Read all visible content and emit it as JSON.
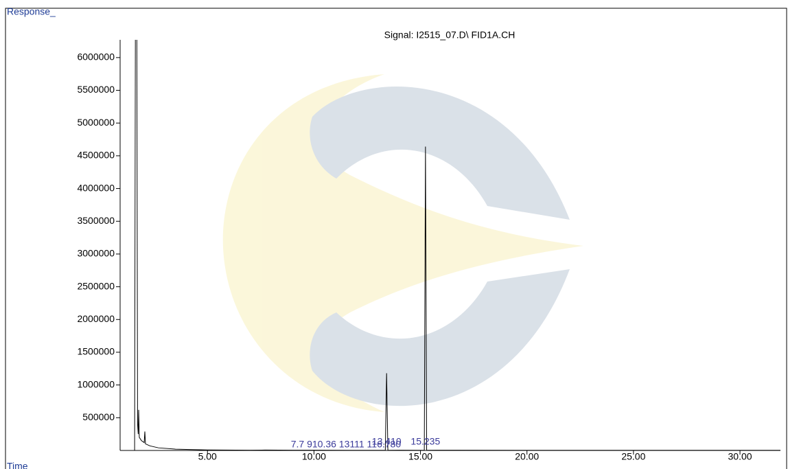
{
  "chart_data": {
    "type": "line",
    "title": "Signal: I2515_07.D\\ FID1A.CH",
    "y_label": "Response_",
    "x_label": "Time",
    "x": [
      1.58,
      1.62,
      1.68,
      1.72,
      1.75,
      1.77,
      1.8,
      1.9,
      2.03,
      2.06,
      2.09,
      2.3,
      2.7,
      3.5,
      5,
      7,
      7.7,
      9,
      10.36,
      12,
      13.35,
      13.41,
      13.47,
      14,
      15.18,
      15.235,
      15.29,
      16.78,
      20,
      25,
      31.9
    ],
    "series": [
      {
        "name": "FID1A",
        "color": "#000000",
        "values": [
          0,
          7000000,
          7000000,
          400000,
          250000,
          620000,
          200000,
          150000,
          120000,
          290000,
          100000,
          70000,
          40000,
          20000,
          8000,
          4000,
          6000,
          4000,
          4000,
          3000,
          3000,
          1180000,
          3000,
          4000,
          3000,
          4640000,
          3000,
          4000,
          2000,
          2000,
          2000
        ]
      }
    ],
    "xlim": [
      0.9,
      31.9
    ],
    "ylim": [
      0,
      6250000
    ],
    "xticks": [
      {
        "value": 5,
        "label": "5.00"
      },
      {
        "value": 10,
        "label": "10.00"
      },
      {
        "value": 15,
        "label": "15.00"
      },
      {
        "value": 20,
        "label": "20.00"
      },
      {
        "value": 25,
        "label": "25.00"
      },
      {
        "value": 30,
        "label": "30.00"
      }
    ],
    "yticks": [
      500000,
      1000000,
      1500000,
      2000000,
      2500000,
      3000000,
      3500000,
      4000000,
      4500000,
      5000000,
      5500000,
      6000000
    ],
    "annotations": [
      {
        "text": "15.235",
        "x": 15.235,
        "y": 4640000
      },
      {
        "text": "13.410",
        "x": 13.41,
        "y": 1180000
      },
      {
        "text": "7.7 910.36 13111 116.780",
        "x": 11.5,
        "y": 0
      }
    ],
    "grid": false
  }
}
